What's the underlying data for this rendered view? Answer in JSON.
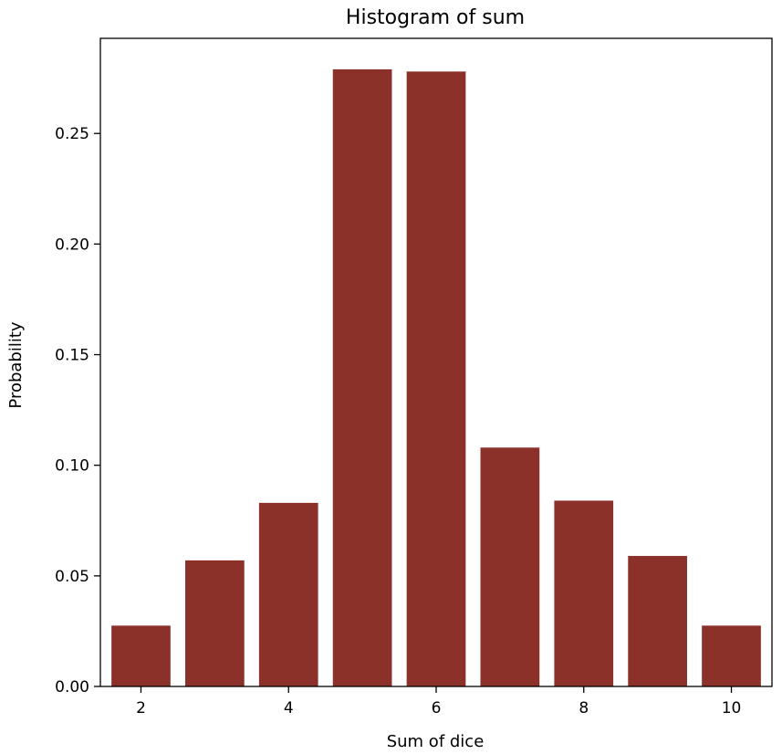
{
  "chart_data": {
    "type": "bar",
    "title": "Histogram of sum",
    "xlabel": "Sum of dice",
    "ylabel": "Probability",
    "x": [
      2,
      3,
      4,
      5,
      6,
      7,
      8,
      9,
      10
    ],
    "values": [
      0.0275,
      0.057,
      0.083,
      0.279,
      0.278,
      0.108,
      0.084,
      0.059,
      0.0275
    ],
    "bar_color": "#8b3129",
    "xlim": [
      1.45,
      10.55
    ],
    "ylim": [
      0,
      0.293
    ],
    "xticks": [
      2,
      4,
      6,
      8,
      10
    ],
    "xtick_labels": [
      "2",
      "4",
      "6",
      "8",
      "10"
    ],
    "yticks": [
      0,
      0.05,
      0.1,
      0.15,
      0.2,
      0.25
    ],
    "ytick_labels": [
      "0.00",
      "0.05",
      "0.10",
      "0.15",
      "0.20",
      "0.25"
    ],
    "grid": false,
    "legend": "none"
  }
}
